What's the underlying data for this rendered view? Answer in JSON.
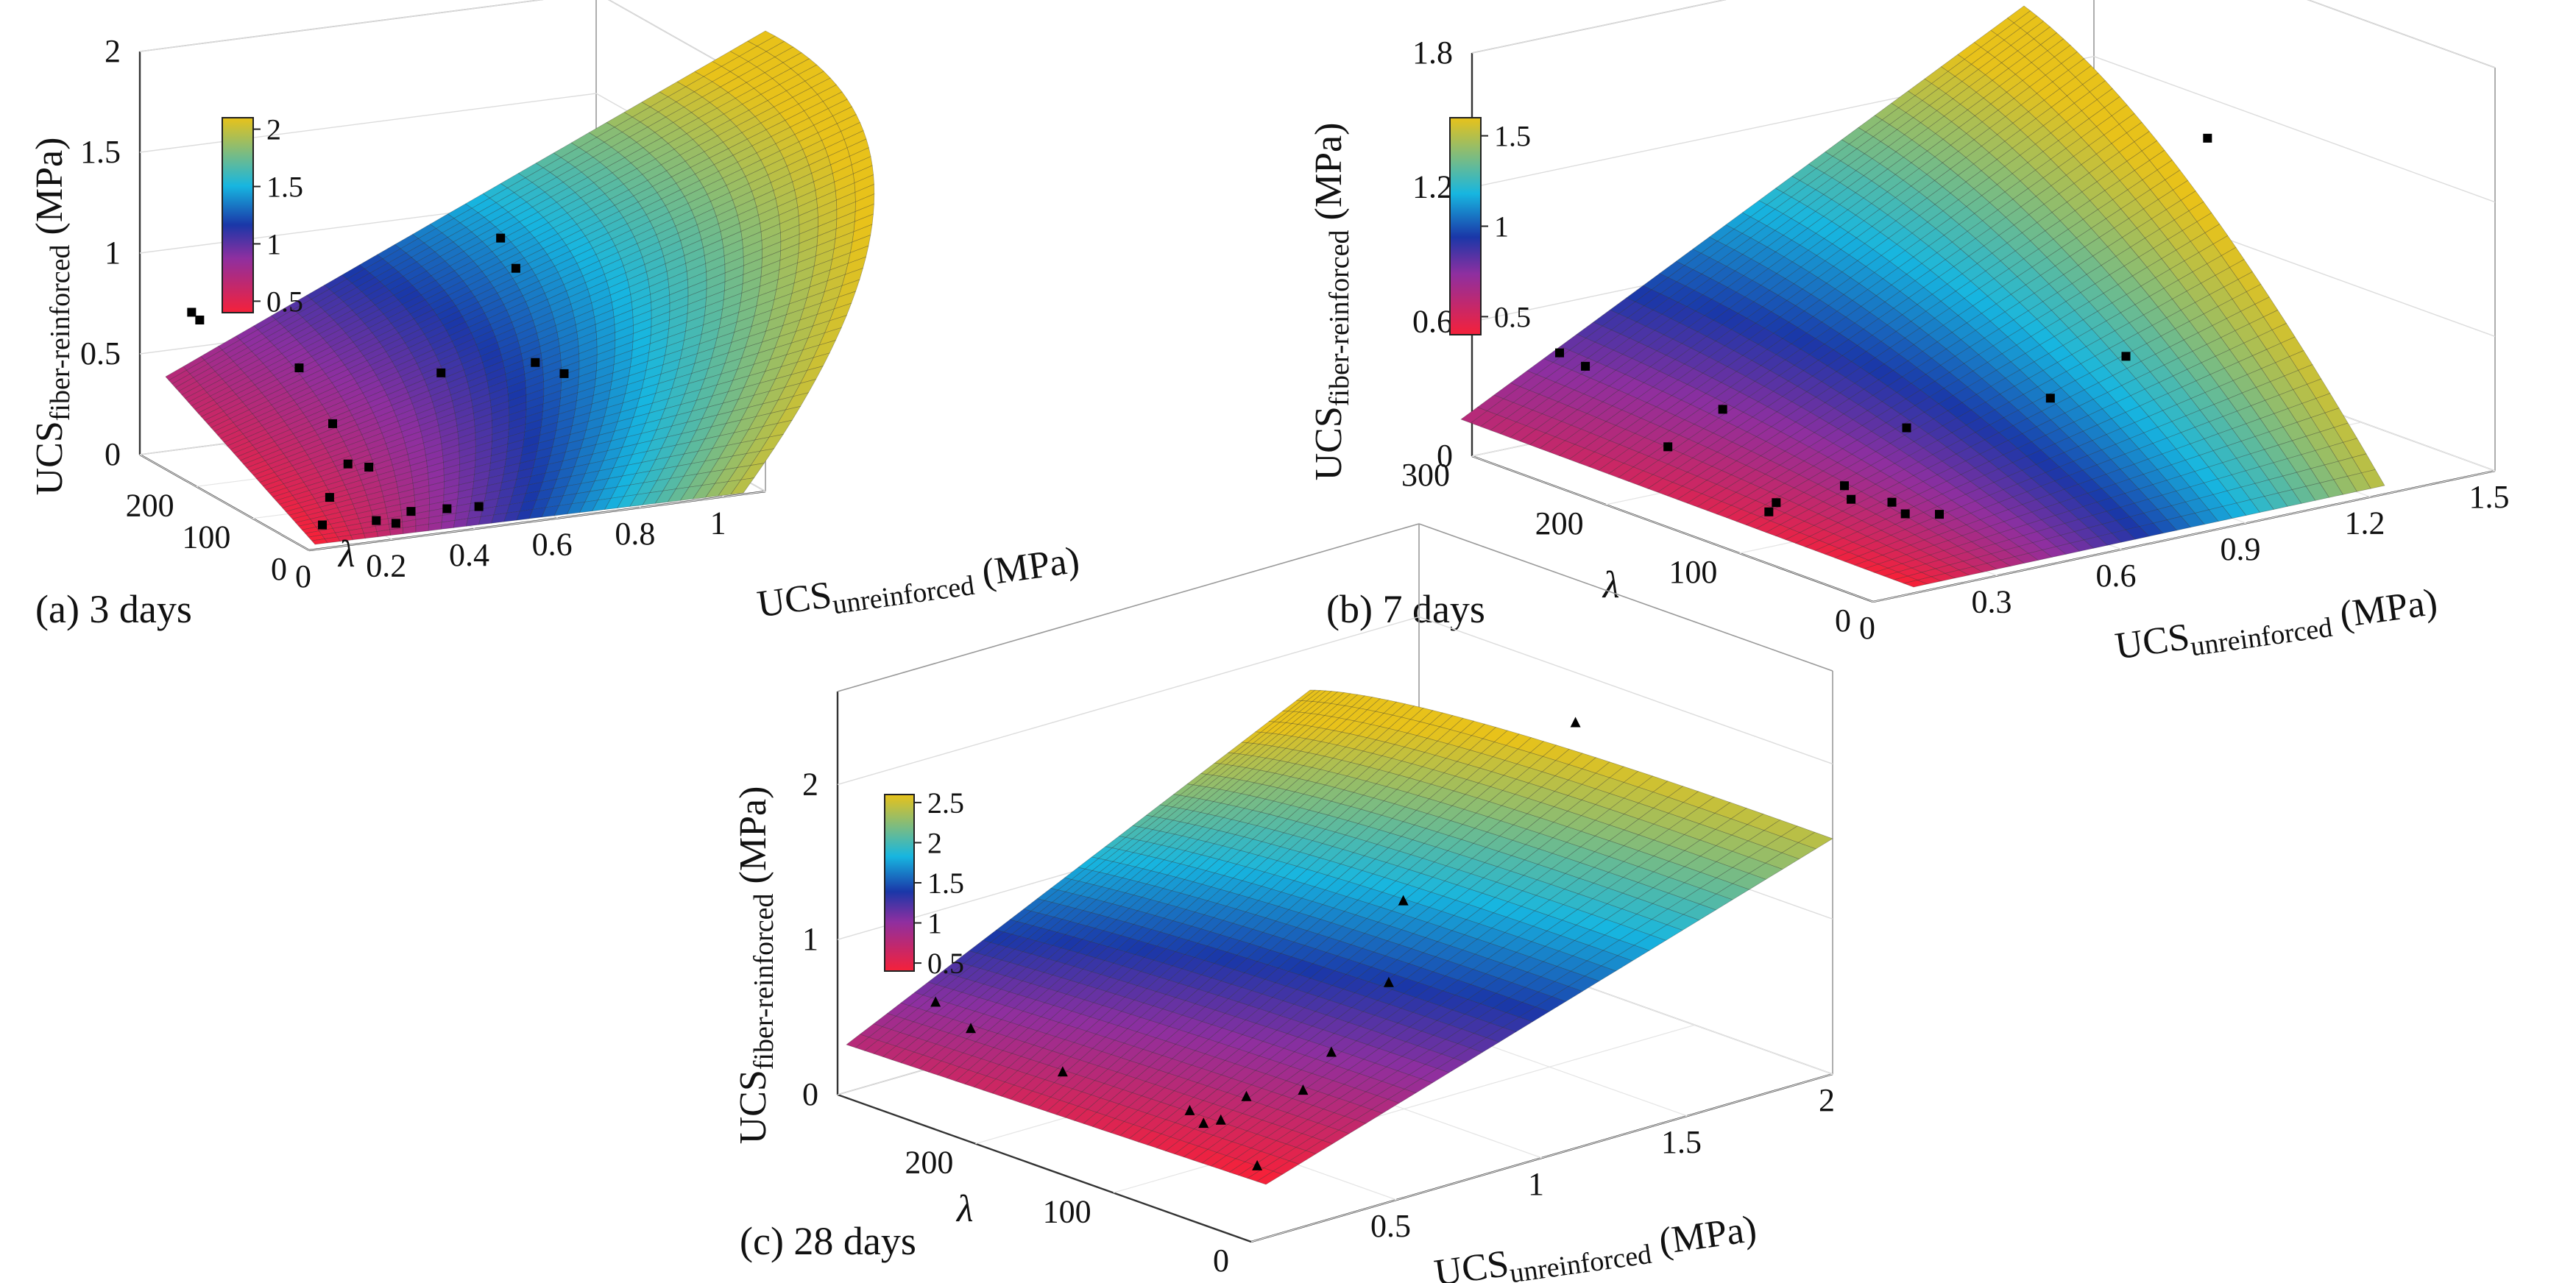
{
  "chart_data": [
    {
      "type": "surface3d",
      "caption": "(a) 3 days",
      "zlabel_main": "UCS",
      "zlabel_sub": "fiber-reinforced",
      "zlabel_unit": " (MPa)",
      "xlabel_main": "UCS",
      "xlabel_sub": "unreinforced",
      "xlabel_unit": " (MPa)",
      "ylabel": "λ",
      "z_ticks": [
        "0",
        "0.5",
        "1",
        "1.5",
        "2"
      ],
      "x_ticks": [
        "0",
        "0.2",
        "0.4",
        "0.6",
        "0.8",
        "1"
      ],
      "y_ticks": [
        "0",
        "100",
        "200"
      ],
      "colorbar_ticks": [
        "0.5",
        "1",
        "1.5",
        "2"
      ],
      "xlim": [
        0,
        1.1
      ],
      "ylim": [
        0,
        300
      ],
      "zlim": [
        0,
        2
      ],
      "marker": "square",
      "points": [
        {
          "x": 0.05,
          "y": 245,
          "z": 0.78
        },
        {
          "x": 0.06,
          "y": 238,
          "z": 0.75
        },
        {
          "x": 0.18,
          "y": 150,
          "z": 0.62
        },
        {
          "x": 0.22,
          "y": 120,
          "z": 0.38
        },
        {
          "x": 0.25,
          "y": 115,
          "z": 0.18
        },
        {
          "x": 0.21,
          "y": 118,
          "z": 0.02
        },
        {
          "x": 0.28,
          "y": 100,
          "z": 0.18
        },
        {
          "x": 0.42,
          "y": 75,
          "z": 0.65
        },
        {
          "x": 0.55,
          "y": 65,
          "z": 1.3
        },
        {
          "x": 0.58,
          "y": 60,
          "z": 1.15
        },
        {
          "x": 0.62,
          "y": 55,
          "z": 0.68
        },
        {
          "x": 0.68,
          "y": 48,
          "z": 0.62
        },
        {
          "x": 0.3,
          "y": 40,
          "z": 0.05
        },
        {
          "x": 0.25,
          "y": 30,
          "z": 0.02
        },
        {
          "x": 0.2,
          "y": 28,
          "z": 0.05
        },
        {
          "x": 0.1,
          "y": 50,
          "z": 0.02
        },
        {
          "x": 0.38,
          "y": 35,
          "z": 0.05
        },
        {
          "x": 0.45,
          "y": 30,
          "z": 0.05
        }
      ]
    },
    {
      "type": "surface3d",
      "caption": "(b) 7 days",
      "zlabel_main": "UCS",
      "zlabel_sub": "fiber-reinforced",
      "zlabel_unit": " (MPa)",
      "xlabel_main": "UCS",
      "xlabel_sub": "unreinforced",
      "xlabel_unit": " (MPa)",
      "ylabel": "λ",
      "z_ticks": [
        "0",
        "0.6",
        "1.2",
        "1.8"
      ],
      "x_ticks": [
        "0",
        "0.3",
        "0.6",
        "0.9",
        "1.2",
        "1.5"
      ],
      "y_ticks": [
        "0",
        "100",
        "200",
        "300"
      ],
      "colorbar_ticks": [
        "0.5",
        "1",
        "1.5"
      ],
      "xlim": [
        0,
        1.5
      ],
      "ylim": [
        0,
        300
      ],
      "zlim": [
        0,
        1.8
      ],
      "marker": "square",
      "points": [
        {
          "x": 0.05,
          "y": 250,
          "z": 0.55
        },
        {
          "x": 0.08,
          "y": 240,
          "z": 0.5
        },
        {
          "x": 0.15,
          "y": 200,
          "z": 0.2
        },
        {
          "x": 0.25,
          "y": 190,
          "z": 0.35
        },
        {
          "x": 0.35,
          "y": 130,
          "z": 0.1
        },
        {
          "x": 0.35,
          "y": 125,
          "z": 0.05
        },
        {
          "x": 0.4,
          "y": 110,
          "z": 0.05
        },
        {
          "x": 0.4,
          "y": 100,
          "z": 0.02
        },
        {
          "x": 0.45,
          "y": 90,
          "z": 0.02
        },
        {
          "x": 0.5,
          "y": 130,
          "z": 0.3
        },
        {
          "x": 0.75,
          "y": 100,
          "z": 0.4
        },
        {
          "x": 0.9,
          "y": 90,
          "z": 0.55
        },
        {
          "x": 1.0,
          "y": 60,
          "z": 1.55
        },
        {
          "x": 0.2,
          "y": 140,
          "z": 0.02
        },
        {
          "x": 0.25,
          "y": 150,
          "z": 0.02
        }
      ]
    },
    {
      "type": "surface3d",
      "caption": "(c) 28 days",
      "zlabel_main": "UCS",
      "zlabel_sub": "fiber-reinforced",
      "zlabel_unit": " (MPa)",
      "xlabel_main": "UCS",
      "xlabel_sub": "unreinforced",
      "xlabel_unit": " (MPa)",
      "ylabel": "λ",
      "z_ticks": [
        "0",
        "1",
        "2"
      ],
      "x_ticks": [
        "0.5",
        "1",
        "1.5",
        "2"
      ],
      "y_ticks": [
        "0",
        "100",
        "200"
      ],
      "colorbar_ticks": [
        "0.5",
        "1",
        "1.5",
        "2",
        "2.5"
      ],
      "xlim": [
        0,
        2
      ],
      "ylim": [
        0,
        300
      ],
      "zlim": [
        0,
        2.6
      ],
      "marker": "triangle",
      "points": [
        {
          "x": 0.1,
          "y": 250,
          "z": 0.7
        },
        {
          "x": 0.15,
          "y": 235,
          "z": 0.55
        },
        {
          "x": 0.3,
          "y": 200,
          "z": 0.3
        },
        {
          "x": 0.5,
          "y": 150,
          "z": 0.1
        },
        {
          "x": 0.6,
          "y": 130,
          "z": 0.2
        },
        {
          "x": 0.7,
          "y": 110,
          "z": 0.25
        },
        {
          "x": 0.75,
          "y": 100,
          "z": 0.5
        },
        {
          "x": 0.9,
          "y": 90,
          "z": 0.9
        },
        {
          "x": 0.95,
          "y": 90,
          "z": 1.4
        },
        {
          "x": 1.4,
          "y": 60,
          "z": 2.4
        },
        {
          "x": 0.5,
          "y": 140,
          "z": 0.05
        },
        {
          "x": 0.55,
          "y": 138,
          "z": 0.05
        },
        {
          "x": 0.4,
          "y": 80,
          "z": 0.02
        }
      ]
    }
  ]
}
